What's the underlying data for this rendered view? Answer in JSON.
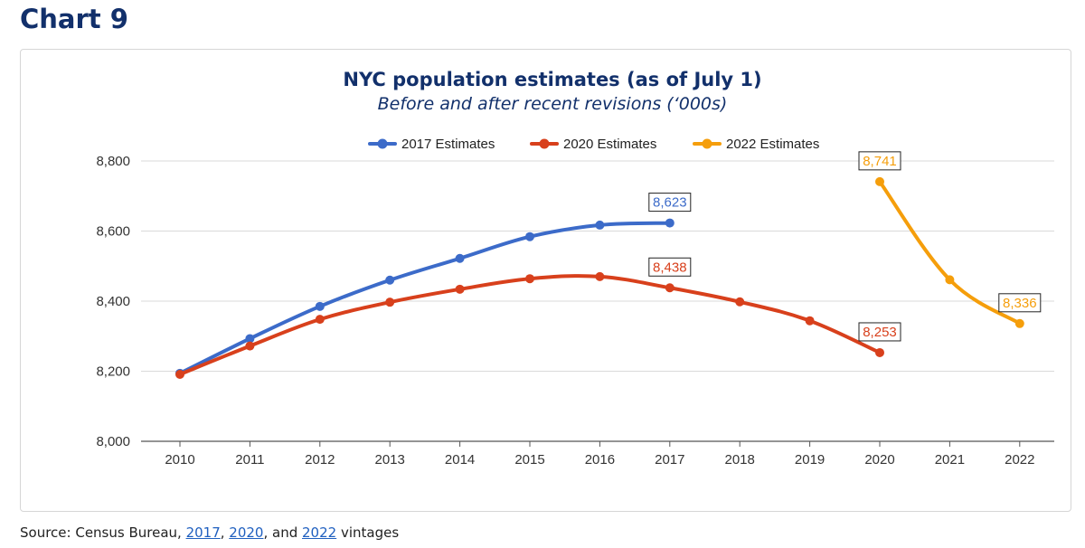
{
  "heading": "Chart 9",
  "source": {
    "prefix": "Source: Census Bureau, ",
    "link1": "2017",
    "sep1": ", ",
    "link2": "2020",
    "sep2": ", and ",
    "link3": "2022",
    "suffix": " vintages"
  },
  "colors": {
    "s2017": "#3c6bc9",
    "s2020": "#d8401c",
    "s2022": "#f59e0b",
    "grid": "#d9d9d9",
    "axis": "#555555"
  },
  "chart_data": {
    "type": "line",
    "title": "NYC population estimates (as of July 1)",
    "subtitle": "Before and after recent revisions (‘000s)",
    "xlabel": "",
    "ylabel": "",
    "x": [
      2010,
      2011,
      2012,
      2013,
      2014,
      2015,
      2016,
      2017,
      2018,
      2019,
      2020,
      2021,
      2022
    ],
    "ylim": [
      8000,
      8800
    ],
    "yticks": [
      8000,
      8200,
      8400,
      8600,
      8800
    ],
    "ytick_labels": [
      "8,000",
      "8,200",
      "8,400",
      "8,600",
      "8,800"
    ],
    "grid": "horizontal",
    "legend": "top-center",
    "series": [
      {
        "name": "2017 Estimates",
        "color": "#3c6bc9",
        "x": [
          2010,
          2011,
          2012,
          2013,
          2014,
          2015,
          2016,
          2017
        ],
        "values": [
          8194,
          8293,
          8385,
          8460,
          8522,
          8584,
          8617,
          8623
        ],
        "labels": [
          {
            "x": 2017,
            "text": "8,623"
          }
        ]
      },
      {
        "name": "2020 Estimates",
        "color": "#d8401c",
        "x": [
          2010,
          2011,
          2012,
          2013,
          2014,
          2015,
          2016,
          2017,
          2018,
          2019,
          2020
        ],
        "values": [
          8191,
          8272,
          8348,
          8397,
          8434,
          8464,
          8470,
          8438,
          8398,
          8344,
          8253
        ],
        "labels": [
          {
            "x": 2017,
            "text": "8,438"
          },
          {
            "x": 2020,
            "text": "8,253"
          }
        ]
      },
      {
        "name": "2022 Estimates",
        "color": "#f59e0b",
        "x": [
          2020,
          2021,
          2022
        ],
        "values": [
          8741,
          8461,
          8336
        ],
        "labels": [
          {
            "x": 2020,
            "text": "8,741"
          },
          {
            "x": 2022,
            "text": "8,336"
          }
        ]
      }
    ]
  }
}
